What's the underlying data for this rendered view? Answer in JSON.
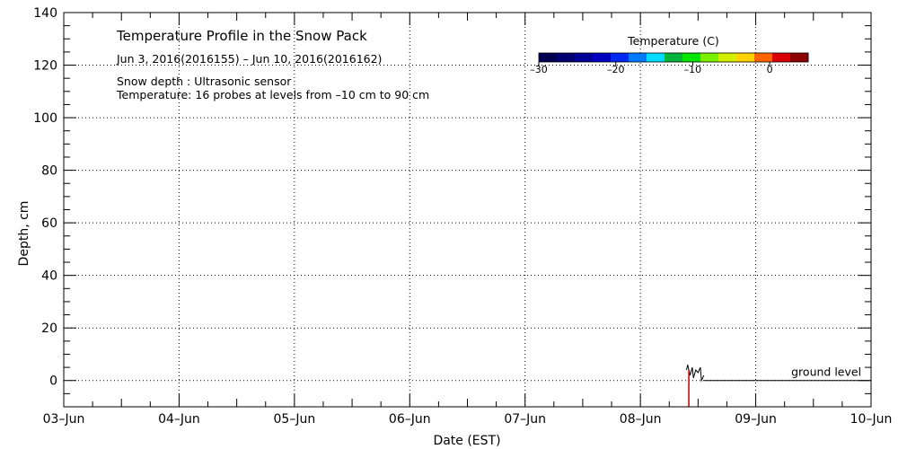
{
  "chart_data": {
    "type": "line",
    "title": "Temperature Profile in the Snow Pack",
    "date_range": "Jun  3, 2016(2016155) – Jun 10, 2016(2016162)",
    "notes": [
      "Snow depth : Ultrasonic sensor",
      "Temperature: 16 probes at levels from –10 cm to 90 cm"
    ],
    "xlabel": "Date (EST)",
    "ylabel": "Depth, cm",
    "x_ticks": [
      "03–Jun",
      "04–Jun",
      "05–Jun",
      "06–Jun",
      "07–Jun",
      "08–Jun",
      "09–Jun",
      "10–Jun"
    ],
    "xlim": [
      0,
      7
    ],
    "ylim": [
      -10,
      140
    ],
    "y_ticks": [
      0,
      20,
      40,
      60,
      80,
      100,
      120,
      140
    ],
    "grid": true,
    "colorbar": {
      "title": "Temperature (C)",
      "range": [
        -30,
        5
      ],
      "tick_labels": [
        "–30",
        "–20",
        "–10",
        "0"
      ],
      "tick_values": [
        -30,
        -20,
        -10,
        0
      ],
      "colors": [
        "#000050",
        "#00006e",
        "#000096",
        "#0000be",
        "#0028f0",
        "#0078ff",
        "#00dcff",
        "#00b43c",
        "#00e600",
        "#78f000",
        "#d2f000",
        "#ffd200",
        "#ff6400",
        "#dc0000",
        "#8c0000"
      ]
    },
    "series": [
      {
        "x": [
          5.55,
          5.6,
          5.66,
          5.75,
          7.0
        ],
        "y": [
          0,
          0,
          0,
          0,
          0
        ]
      },
      {
        "x": [
          5.4,
          5.41,
          5.43,
          5.45,
          5.46,
          5.48,
          5.5,
          5.52,
          5.53,
          5.55
        ],
        "y": [
          4,
          6,
          2,
          5,
          1,
          4,
          3,
          5,
          0,
          2
        ]
      }
    ],
    "annotations": [
      {
        "text": "ground level",
        "x": 6.3,
        "y": 0
      }
    ]
  }
}
